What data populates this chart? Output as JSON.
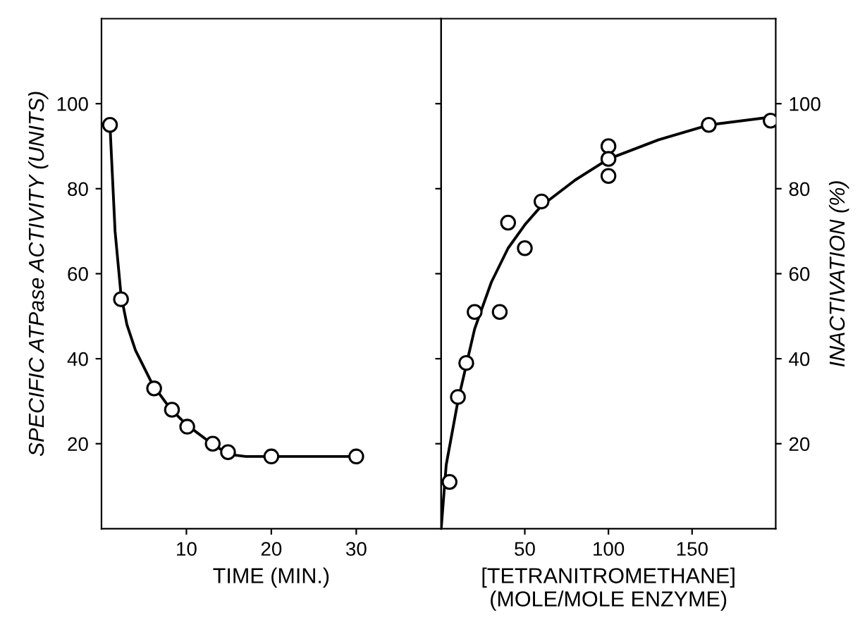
{
  "chart_data": [
    {
      "type": "scatter",
      "xlabel": "TIME (MIN.)",
      "ylabel": "SPECIFIC ATPase ACTIVITY (UNITS)",
      "xlim": [
        0,
        40
      ],
      "xticks": [
        10,
        20,
        30
      ],
      "ylim": [
        0,
        120
      ],
      "yticks": [
        20,
        40,
        60,
        80,
        100
      ],
      "grid": false,
      "legend": false,
      "marker": "circle",
      "series": [
        {
          "color": "#000000",
          "x": [
            1,
            2.3,
            6.2,
            8.3,
            10.1,
            13.1,
            14.9,
            20,
            30
          ],
          "values": [
            95,
            54,
            33,
            28,
            24,
            20,
            18,
            17,
            17
          ]
        },
        {
          "type": "line",
          "color": "#000000",
          "marker": "none",
          "line_style": "solid",
          "x": [
            1,
            1.6,
            2.3,
            3,
            4,
            6,
            8,
            10,
            13,
            15,
            17,
            20,
            30
          ],
          "values": [
            95,
            70,
            55,
            48,
            42,
            34,
            28.5,
            24.5,
            20,
            17.5,
            17,
            17,
            17
          ]
        }
      ]
    },
    {
      "type": "scatter",
      "xlabel": "[TETRANITROMETHANE]\n(MOLE/MOLE ENZYME)",
      "ylabel": "INACTIVATION (%)",
      "xlim": [
        0,
        200
      ],
      "xticks": [
        50,
        100,
        150
      ],
      "ylim": [
        0,
        120
      ],
      "yticks": [
        20,
        40,
        60,
        80,
        100
      ],
      "grid": false,
      "legend": false,
      "marker": "circle",
      "series": [
        {
          "color": "#000000",
          "x": [
            5,
            10,
            15,
            20,
            35,
            40,
            50,
            60,
            100,
            100,
            100,
            160,
            197
          ],
          "values": [
            11,
            31,
            39,
            51,
            51,
            72,
            66,
            77,
            90,
            87,
            83,
            95,
            96
          ]
        },
        {
          "type": "line",
          "color": "#000000",
          "marker": "none",
          "line_style": "solid",
          "x": [
            0,
            3,
            10,
            20,
            30,
            40,
            50,
            60,
            80,
            100,
            130,
            160,
            200
          ],
          "values": [
            0,
            15,
            30,
            47,
            58,
            66,
            71.5,
            76,
            82,
            87,
            91.5,
            95,
            97
          ]
        }
      ]
    }
  ]
}
